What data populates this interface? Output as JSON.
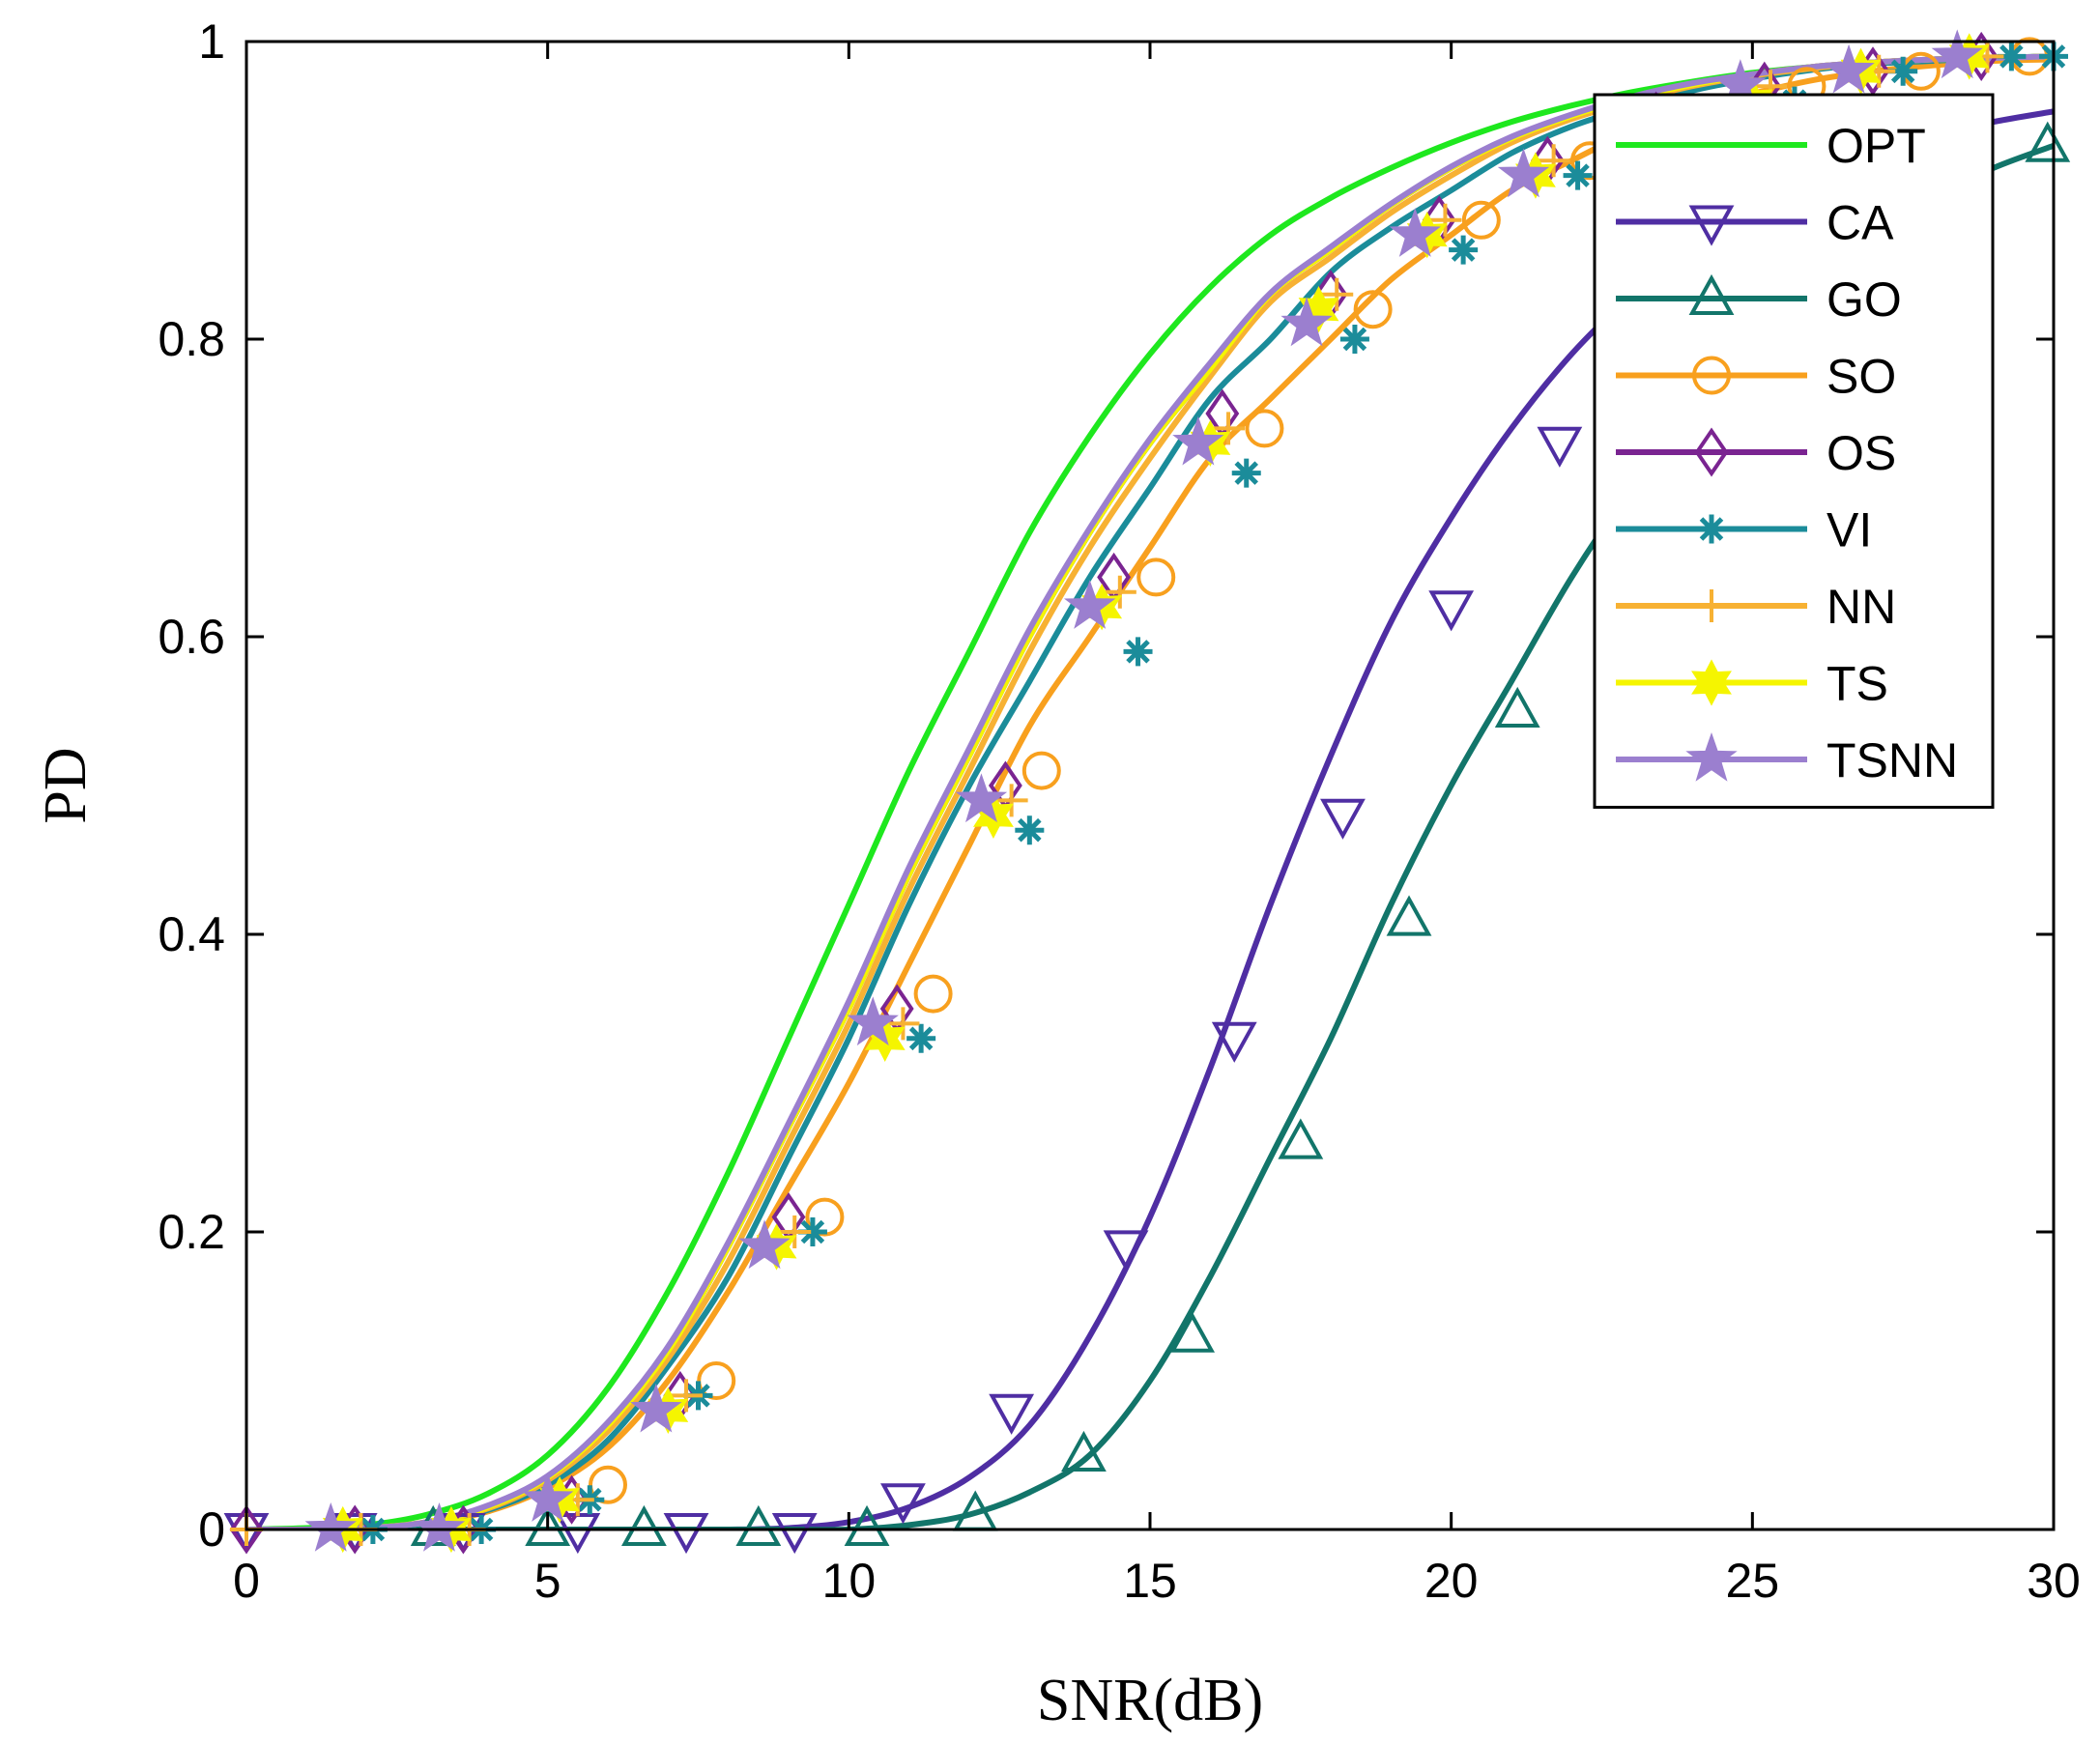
{
  "chart_data": {
    "type": "line",
    "xlabel": "SNR(dB)",
    "ylabel": "PD",
    "xlim": [
      0,
      30
    ],
    "ylim": [
      0,
      1
    ],
    "xticks": [
      0,
      5,
      10,
      15,
      20,
      25,
      30
    ],
    "yticks": [
      0,
      0.2,
      0.4,
      0.6,
      0.8,
      1
    ],
    "ytick_labels": [
      "0",
      "0.2",
      "0.4",
      "0.6",
      "0.8",
      "1"
    ],
    "grid": false,
    "legend_position": "top-right",
    "series": [
      {
        "name": "OPT",
        "color": "#1ee81e",
        "marker": "none",
        "x": [
          0,
          1,
          2,
          3,
          4,
          5,
          6,
          7,
          8,
          9,
          10,
          11,
          12,
          13,
          14,
          15,
          16,
          17,
          18,
          19,
          20,
          21,
          22,
          23,
          24,
          25,
          26,
          27,
          28,
          29,
          30
        ],
        "y": [
          0,
          0.001,
          0.003,
          0.01,
          0.024,
          0.05,
          0.095,
          0.16,
          0.24,
          0.33,
          0.42,
          0.51,
          0.59,
          0.67,
          0.735,
          0.79,
          0.835,
          0.87,
          0.895,
          0.915,
          0.932,
          0.946,
          0.957,
          0.966,
          0.973,
          0.979,
          0.983,
          0.986,
          0.988,
          0.989,
          0.99
        ]
      },
      {
        "name": "CA",
        "color": "#4f2ea3",
        "marker": "triangle-down",
        "x": [
          0,
          1,
          2,
          3,
          4,
          5,
          6,
          7,
          8,
          9,
          10,
          11,
          12,
          13,
          14,
          15,
          16,
          17,
          18,
          19,
          20,
          21,
          22,
          23,
          24,
          25,
          26,
          27,
          28,
          29,
          30
        ],
        "y": [
          0,
          0,
          0,
          0,
          0,
          0,
          0,
          0,
          0,
          0.001,
          0.005,
          0.015,
          0.035,
          0.07,
          0.13,
          0.21,
          0.31,
          0.42,
          0.52,
          0.61,
          0.68,
          0.74,
          0.79,
          0.83,
          0.865,
          0.89,
          0.91,
          0.925,
          0.937,
          0.946,
          0.953
        ],
        "marker_x": [
          0,
          1.8,
          3.6,
          5.5,
          7.3,
          9.1,
          10.9,
          12.7,
          14.6,
          16.4,
          18.2,
          20,
          21.8
        ],
        "marker_y": [
          0,
          0,
          0,
          0,
          0,
          0,
          0.02,
          0.08,
          0.19,
          0.33,
          0.48,
          0.62,
          0.73
        ]
      },
      {
        "name": "GO",
        "color": "#12756a",
        "marker": "triangle-up",
        "x": [
          0,
          1,
          2,
          3,
          4,
          5,
          6,
          7,
          8,
          9,
          10,
          11,
          12,
          13,
          14,
          15,
          16,
          17,
          18,
          19,
          20,
          21,
          22,
          23,
          24,
          25,
          26,
          27,
          28,
          29,
          30
        ],
        "y": [
          0,
          0,
          0,
          0,
          0,
          0,
          0,
          0,
          0,
          0,
          0,
          0.003,
          0.01,
          0.025,
          0.05,
          0.1,
          0.17,
          0.25,
          0.33,
          0.42,
          0.5,
          0.57,
          0.64,
          0.7,
          0.75,
          0.8,
          0.84,
          0.87,
          0.895,
          0.915,
          0.93
        ],
        "marker_x": [
          3.1,
          5,
          6.6,
          8.5,
          10.3,
          12.1,
          13.9,
          15.7,
          17.5,
          19.3,
          21.1,
          29.9
        ],
        "marker_y": [
          0,
          0,
          0,
          0,
          0,
          0.01,
          0.05,
          0.13,
          0.26,
          0.41,
          0.55,
          0.93
        ]
      },
      {
        "name": "SO",
        "color": "#f8a01e",
        "marker": "circle",
        "x": [
          0,
          1,
          2,
          3,
          4,
          5,
          6,
          7,
          8,
          9,
          10,
          11,
          12,
          13,
          14,
          15,
          16,
          17,
          18,
          19,
          20,
          21,
          22,
          23,
          24,
          25,
          26,
          27,
          28,
          29,
          30
        ],
        "y": [
          0,
          0,
          0.001,
          0.004,
          0.012,
          0.028,
          0.055,
          0.1,
          0.16,
          0.23,
          0.3,
          0.38,
          0.46,
          0.54,
          0.6,
          0.66,
          0.72,
          0.76,
          0.8,
          0.84,
          0.87,
          0.9,
          0.92,
          0.94,
          0.955,
          0.965,
          0.974,
          0.98,
          0.984,
          0.987,
          0.988
        ],
        "marker_x": [
          6.0,
          7.8,
          9.6,
          11.4,
          13.2,
          15.1,
          16.9,
          18.7,
          20.5,
          22.3,
          24.1,
          25.9,
          27.8,
          29.6
        ],
        "marker_y": [
          0.03,
          0.1,
          0.21,
          0.36,
          0.51,
          0.64,
          0.74,
          0.82,
          0.88,
          0.92,
          0.95,
          0.97,
          0.98,
          0.99
        ]
      },
      {
        "name": "OS",
        "color": "#7a2491",
        "marker": "diamond",
        "x": [
          0,
          1,
          2,
          3,
          4,
          5,
          6,
          7,
          8,
          9,
          10,
          11,
          12,
          13,
          14,
          15,
          16,
          17,
          18,
          19,
          20,
          21,
          22,
          23,
          24,
          25,
          26,
          27,
          28,
          29,
          30
        ],
        "y": [
          0,
          0,
          0.001,
          0.005,
          0.015,
          0.035,
          0.07,
          0.12,
          0.19,
          0.27,
          0.35,
          0.44,
          0.52,
          0.6,
          0.67,
          0.73,
          0.78,
          0.83,
          0.86,
          0.89,
          0.915,
          0.935,
          0.95,
          0.962,
          0.971,
          0.978,
          0.983,
          0.986,
          0.988,
          0.989,
          0.99
        ],
        "marker_x": [
          0,
          1.8,
          3.6,
          5.4,
          7.2,
          9.0,
          10.8,
          12.6,
          14.4,
          16.2,
          18.0,
          19.8,
          21.6,
          23.4,
          25.2,
          27.0,
          28.8
        ],
        "marker_y": [
          0,
          0,
          0,
          0.02,
          0.09,
          0.21,
          0.35,
          0.5,
          0.64,
          0.75,
          0.83,
          0.88,
          0.92,
          0.95,
          0.97,
          0.98,
          0.99
        ]
      },
      {
        "name": "VI",
        "color": "#1b8c9a",
        "marker": "asterisk",
        "x": [
          0,
          1,
          2,
          3,
          4,
          5,
          6,
          7,
          8,
          9,
          10,
          11,
          12,
          13,
          14,
          15,
          16,
          17,
          18,
          19,
          20,
          21,
          22,
          23,
          24,
          25,
          26,
          27,
          28,
          29,
          30
        ],
        "y": [
          0,
          0,
          0.001,
          0.004,
          0.013,
          0.03,
          0.06,
          0.11,
          0.17,
          0.25,
          0.33,
          0.42,
          0.5,
          0.57,
          0.64,
          0.7,
          0.76,
          0.8,
          0.845,
          0.875,
          0.9,
          0.925,
          0.943,
          0.956,
          0.967,
          0.975,
          0.981,
          0.985,
          0.987,
          0.989,
          0.99
        ],
        "marker_x": [
          2.1,
          3.9,
          5.7,
          7.5,
          9.4,
          11.2,
          13.0,
          14.8,
          16.6,
          18.4,
          20.2,
          22.1,
          23.9,
          25.7,
          27.5,
          29.3,
          30
        ],
        "marker_y": [
          0,
          0,
          0.02,
          0.09,
          0.2,
          0.33,
          0.47,
          0.59,
          0.71,
          0.8,
          0.86,
          0.91,
          0.94,
          0.96,
          0.98,
          0.99,
          0.99
        ]
      },
      {
        "name": "NN",
        "color": "#f7b133",
        "marker": "plus",
        "x": [
          0,
          1,
          2,
          3,
          4,
          5,
          6,
          7,
          8,
          9,
          10,
          11,
          12,
          13,
          14,
          15,
          16,
          17,
          18,
          19,
          20,
          21,
          22,
          23,
          24,
          25,
          26,
          27,
          28,
          29,
          30
        ],
        "y": [
          0,
          0,
          0.001,
          0.005,
          0.014,
          0.033,
          0.066,
          0.115,
          0.18,
          0.26,
          0.34,
          0.43,
          0.51,
          0.59,
          0.66,
          0.72,
          0.775,
          0.825,
          0.855,
          0.885,
          0.91,
          0.932,
          0.948,
          0.96,
          0.97,
          0.977,
          0.982,
          0.986,
          0.988,
          0.989,
          0.99
        ],
        "marker_x": [
          0,
          1.9,
          3.7,
          5.5,
          7.3,
          9.1,
          10.9,
          12.7,
          14.5,
          16.3,
          18.1,
          19.9,
          21.7,
          23.5,
          25.3,
          27.1,
          28.9
        ],
        "marker_y": [
          0,
          0,
          0,
          0.02,
          0.09,
          0.2,
          0.34,
          0.49,
          0.63,
          0.74,
          0.83,
          0.88,
          0.92,
          0.95,
          0.97,
          0.98,
          0.99
        ]
      },
      {
        "name": "TS",
        "color": "#f5f500",
        "marker": "hexagram",
        "x": [
          0,
          1,
          2,
          3,
          4,
          5,
          6,
          7,
          8,
          9,
          10,
          11,
          12,
          13,
          14,
          15,
          16,
          17,
          18,
          19,
          20,
          21,
          22,
          23,
          24,
          25,
          26,
          27,
          28,
          29,
          30
        ],
        "y": [
          0,
          0,
          0.001,
          0.005,
          0.015,
          0.035,
          0.07,
          0.12,
          0.19,
          0.27,
          0.35,
          0.44,
          0.52,
          0.6,
          0.67,
          0.73,
          0.78,
          0.83,
          0.86,
          0.89,
          0.915,
          0.935,
          0.95,
          0.962,
          0.971,
          0.978,
          0.983,
          0.986,
          0.988,
          0.989,
          0.99
        ],
        "marker_x": [
          1.6,
          3.4,
          5.2,
          7.0,
          8.8,
          10.6,
          12.4,
          14.2,
          16.0,
          17.8,
          19.6,
          21.4,
          23.2,
          25.0,
          26.8,
          28.6
        ],
        "marker_y": [
          0,
          0,
          0.02,
          0.08,
          0.19,
          0.33,
          0.48,
          0.62,
          0.73,
          0.82,
          0.87,
          0.91,
          0.94,
          0.96,
          0.98,
          0.99
        ]
      },
      {
        "name": "TSNN",
        "color": "#9b7fcf",
        "marker": "pentagram",
        "x": [
          0,
          1,
          2,
          3,
          4,
          5,
          6,
          7,
          8,
          9,
          10,
          11,
          12,
          13,
          14,
          15,
          16,
          17,
          18,
          19,
          20,
          21,
          22,
          23,
          24,
          25,
          26,
          27,
          28,
          29,
          30
        ],
        "y": [
          0,
          0,
          0.001,
          0.005,
          0.016,
          0.036,
          0.072,
          0.123,
          0.193,
          0.273,
          0.355,
          0.445,
          0.525,
          0.605,
          0.673,
          0.733,
          0.784,
          0.831,
          0.862,
          0.891,
          0.916,
          0.936,
          0.951,
          0.963,
          0.972,
          0.978,
          0.983,
          0.986,
          0.988,
          0.989,
          0.99
        ],
        "marker_x": [
          1.4,
          3.2,
          5.0,
          6.8,
          8.6,
          10.4,
          12.2,
          14.0,
          15.8,
          17.6,
          19.4,
          21.2,
          23.0,
          24.8,
          26.6,
          28.4
        ],
        "marker_y": [
          0,
          0,
          0.02,
          0.08,
          0.19,
          0.34,
          0.49,
          0.62,
          0.73,
          0.81,
          0.87,
          0.91,
          0.94,
          0.97,
          0.98,
          0.99
        ]
      }
    ]
  }
}
